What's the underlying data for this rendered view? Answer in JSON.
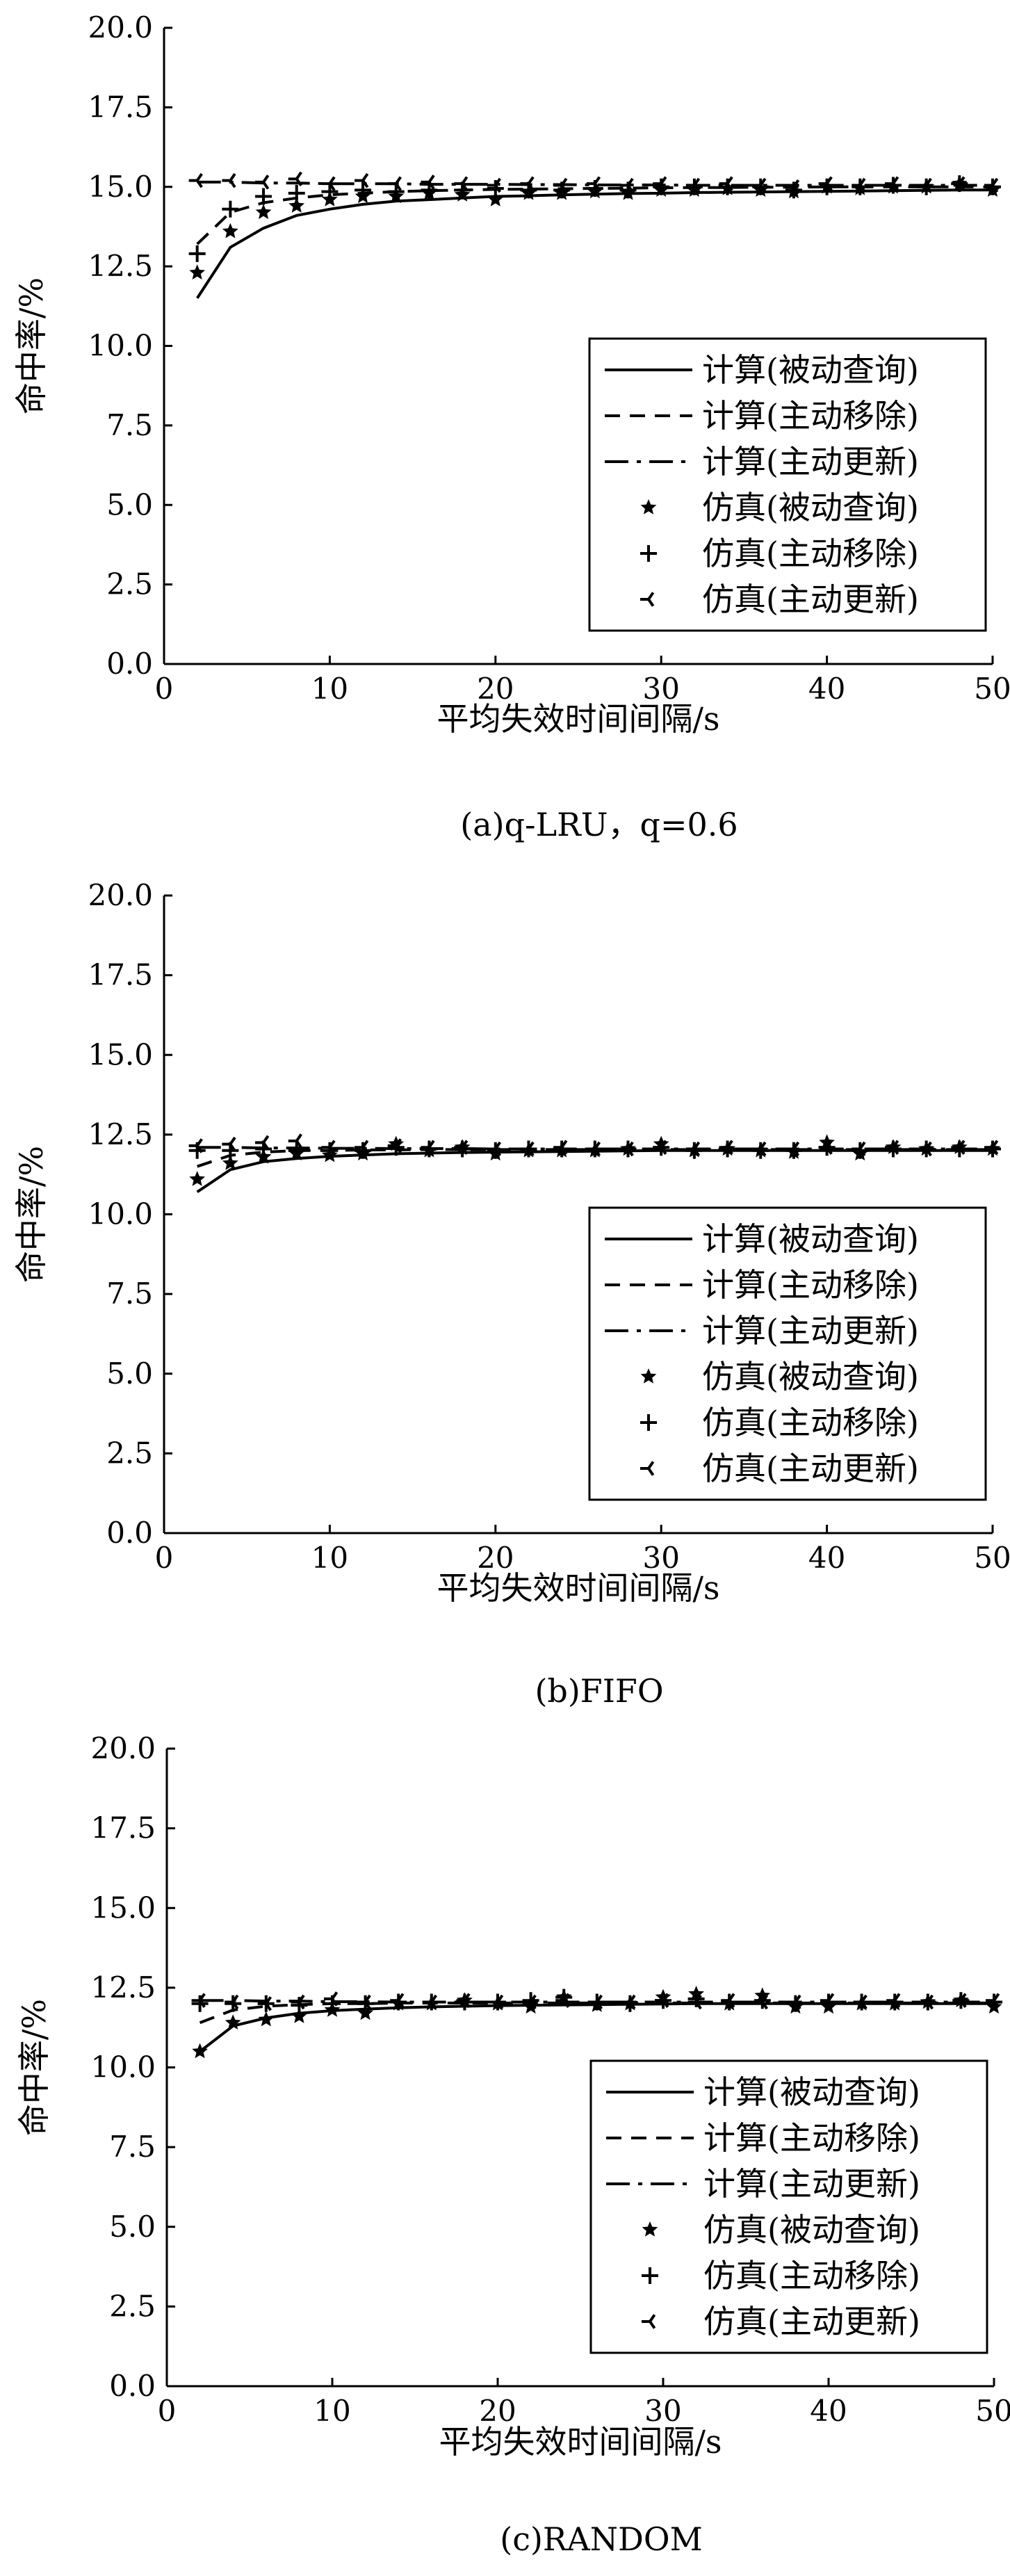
{
  "chart_data": [
    {
      "type": "line",
      "caption": "(a)q-LRU，q=0.6",
      "xlabel": "平均失效时间间隔/s",
      "ylabel": "命中率/%",
      "xlim": [
        0,
        50
      ],
      "ylim": [
        0.0,
        20.0
      ],
      "xticks": [
        "0",
        "10",
        "20",
        "30",
        "40",
        "50"
      ],
      "yticks": [
        "0.0",
        "2.5",
        "5.0",
        "7.5",
        "10.0",
        "12.5",
        "15.0",
        "17.5",
        "20.0"
      ],
      "grid": false,
      "legend_position": "bottom-right",
      "x": [
        2,
        4,
        6,
        8,
        10,
        12,
        14,
        16,
        18,
        20,
        22,
        24,
        26,
        28,
        30,
        32,
        34,
        36,
        38,
        40,
        42,
        44,
        46,
        48,
        50
      ],
      "series": [
        {
          "name": "计算(被动查询)",
          "kind": "line",
          "dash": "solid",
          "values": [
            11.5,
            13.1,
            13.7,
            14.1,
            14.3,
            14.45,
            14.55,
            14.6,
            14.65,
            14.7,
            14.72,
            14.75,
            14.77,
            14.79,
            14.8,
            14.82,
            14.83,
            14.84,
            14.85,
            14.86,
            14.87,
            14.88,
            14.89,
            14.9,
            14.9
          ]
        },
        {
          "name": "计算(主动移除)",
          "kind": "line",
          "dash": "dashed",
          "values": [
            13.2,
            14.2,
            14.5,
            14.65,
            14.75,
            14.8,
            14.85,
            14.88,
            14.9,
            14.92,
            14.93,
            14.94,
            14.95,
            14.96,
            14.97,
            14.98,
            14.98,
            14.99,
            14.99,
            15.0,
            15.0,
            15.0,
            15.0,
            15.0,
            15.0
          ]
        },
        {
          "name": "计算(主动更新)",
          "kind": "line",
          "dash": "dashdot",
          "values": [
            15.15,
            15.15,
            15.12,
            15.12,
            15.1,
            15.1,
            15.1,
            15.08,
            15.08,
            15.08,
            15.07,
            15.07,
            15.06,
            15.06,
            15.06,
            15.05,
            15.05,
            15.05,
            15.05,
            15.05,
            15.05,
            15.05,
            15.05,
            15.05,
            15.05
          ]
        },
        {
          "name": "仿真(被动查询)",
          "kind": "marker",
          "marker": "star",
          "values": [
            12.3,
            13.6,
            14.2,
            14.4,
            14.6,
            14.7,
            14.7,
            14.8,
            14.75,
            14.6,
            14.8,
            14.8,
            14.85,
            14.8,
            14.9,
            14.9,
            14.95,
            14.9,
            14.85,
            15.0,
            14.95,
            15.0,
            15.0,
            15.1,
            14.9
          ]
        },
        {
          "name": "仿真(主动移除)",
          "kind": "marker",
          "marker": "plus",
          "values": [
            12.9,
            14.3,
            14.7,
            14.8,
            14.85,
            14.9,
            14.85,
            14.9,
            14.9,
            14.95,
            14.9,
            14.9,
            14.95,
            14.9,
            15.0,
            15.0,
            15.0,
            15.0,
            14.9,
            15.0,
            15.0,
            15.05,
            15.0,
            15.1,
            15.0
          ]
        },
        {
          "name": "仿真(主动更新)",
          "kind": "marker",
          "marker": "tri",
          "values": [
            15.2,
            15.2,
            15.15,
            15.25,
            15.1,
            15.2,
            15.1,
            15.15,
            15.1,
            15.05,
            15.1,
            15.05,
            15.1,
            15.05,
            15.1,
            15.05,
            15.1,
            15.05,
            15.0,
            15.1,
            15.05,
            15.1,
            15.05,
            15.1,
            15.05
          ]
        }
      ]
    },
    {
      "type": "line",
      "caption": "(b)FIFO",
      "xlabel": "平均失效时间间隔/s",
      "ylabel": "命中率/%",
      "xlim": [
        0,
        50
      ],
      "ylim": [
        0.0,
        20.0
      ],
      "xticks": [
        "0",
        "10",
        "20",
        "30",
        "40",
        "50"
      ],
      "yticks": [
        "0.0",
        "2.5",
        "5.0",
        "7.5",
        "10.0",
        "12.5",
        "15.0",
        "17.5",
        "20.0"
      ],
      "grid": false,
      "legend_position": "bottom-right",
      "x": [
        2,
        4,
        6,
        8,
        10,
        12,
        14,
        16,
        18,
        20,
        22,
        24,
        26,
        28,
        30,
        32,
        34,
        36,
        38,
        40,
        42,
        44,
        46,
        48,
        50
      ],
      "series": [
        {
          "name": "计算(被动查询)",
          "kind": "line",
          "dash": "solid",
          "values": [
            10.7,
            11.4,
            11.65,
            11.75,
            11.82,
            11.86,
            11.9,
            11.92,
            11.94,
            11.95,
            11.96,
            11.97,
            11.98,
            11.99,
            12.0,
            12.0,
            12.0,
            12.0,
            12.0,
            12.0,
            12.0,
            12.0,
            12.0,
            12.0,
            12.0
          ]
        },
        {
          "name": "计算(主动移除)",
          "kind": "line",
          "dash": "dashed",
          "values": [
            11.5,
            11.85,
            11.95,
            12.0,
            12.0,
            12.02,
            12.02,
            12.03,
            12.03,
            12.03,
            12.03,
            12.03,
            12.03,
            12.03,
            12.03,
            12.03,
            12.03,
            12.03,
            12.03,
            12.03,
            12.03,
            12.03,
            12.03,
            12.03,
            12.03
          ]
        },
        {
          "name": "计算(主动更新)",
          "kind": "line",
          "dash": "dashdot",
          "values": [
            12.1,
            12.1,
            12.08,
            12.08,
            12.07,
            12.07,
            12.06,
            12.06,
            12.06,
            12.05,
            12.05,
            12.05,
            12.05,
            12.05,
            12.05,
            12.05,
            12.05,
            12.05,
            12.05,
            12.05,
            12.05,
            12.05,
            12.05,
            12.05,
            12.05
          ]
        },
        {
          "name": "仿真(被动查询)",
          "kind": "marker",
          "marker": "star",
          "values": [
            11.1,
            11.6,
            11.8,
            11.9,
            11.85,
            11.9,
            12.2,
            12.0,
            12.1,
            11.9,
            12.0,
            12.0,
            12.0,
            12.05,
            12.2,
            12.0,
            12.05,
            12.0,
            11.95,
            12.25,
            11.9,
            12.1,
            12.05,
            12.1,
            12.05
          ]
        },
        {
          "name": "仿真(主动移除)",
          "kind": "marker",
          "marker": "plus",
          "values": [
            12.0,
            12.0,
            12.05,
            12.0,
            12.0,
            12.0,
            12.1,
            12.05,
            12.05,
            12.0,
            12.05,
            12.05,
            12.05,
            12.05,
            12.1,
            12.0,
            12.05,
            12.0,
            12.0,
            12.1,
            12.0,
            12.05,
            12.05,
            12.05,
            12.05
          ]
        },
        {
          "name": "仿真(主动更新)",
          "kind": "marker",
          "marker": "tri",
          "values": [
            12.15,
            12.2,
            12.25,
            12.3,
            12.1,
            12.1,
            12.15,
            12.1,
            12.1,
            12.05,
            12.05,
            12.1,
            12.05,
            12.05,
            12.1,
            12.05,
            12.1,
            12.05,
            12.05,
            12.1,
            12.05,
            12.1,
            12.05,
            12.1,
            12.1
          ]
        }
      ]
    },
    {
      "type": "line",
      "caption": "(c)RANDOM",
      "xlabel": "平均失效时间间隔/s",
      "ylabel": "命中率/%",
      "xlim": [
        0,
        50
      ],
      "ylim": [
        0.0,
        20.0
      ],
      "xticks": [
        "0",
        "10",
        "20",
        "30",
        "40",
        "50"
      ],
      "yticks": [
        "0.0",
        "2.5",
        "5.0",
        "7.5",
        "10.0",
        "12.5",
        "15.0",
        "17.5",
        "20.0"
      ],
      "grid": false,
      "legend_position": "bottom-right",
      "x": [
        2,
        4,
        6,
        8,
        10,
        12,
        14,
        16,
        18,
        20,
        22,
        24,
        26,
        28,
        30,
        32,
        34,
        36,
        38,
        40,
        42,
        44,
        46,
        48,
        50
      ],
      "series": [
        {
          "name": "计算(被动查询)",
          "kind": "line",
          "dash": "solid",
          "values": [
            10.5,
            11.3,
            11.55,
            11.7,
            11.78,
            11.83,
            11.87,
            11.9,
            11.92,
            11.94,
            11.95,
            11.96,
            11.97,
            11.98,
            11.99,
            12.0,
            12.0,
            12.0,
            12.0,
            12.0,
            12.0,
            12.0,
            12.0,
            12.0,
            12.0
          ]
        },
        {
          "name": "计算(主动移除)",
          "kind": "line",
          "dash": "dashed",
          "values": [
            11.4,
            11.8,
            11.92,
            11.97,
            12.0,
            12.0,
            12.02,
            12.02,
            12.02,
            12.02,
            12.02,
            12.02,
            12.02,
            12.02,
            12.02,
            12.02,
            12.02,
            12.02,
            12.02,
            12.02,
            12.02,
            12.02,
            12.02,
            12.02,
            12.02
          ]
        },
        {
          "name": "计算(主动更新)",
          "kind": "line",
          "dash": "dashdot",
          "values": [
            12.1,
            12.1,
            12.08,
            12.08,
            12.06,
            12.06,
            12.05,
            12.05,
            12.05,
            12.05,
            12.05,
            12.05,
            12.05,
            12.05,
            12.05,
            12.05,
            12.05,
            12.05,
            12.05,
            12.05,
            12.05,
            12.05,
            12.05,
            12.05,
            12.05
          ]
        },
        {
          "name": "仿真(被动查询)",
          "kind": "marker",
          "marker": "star",
          "values": [
            10.5,
            11.4,
            11.5,
            11.6,
            11.8,
            11.7,
            12.0,
            12.0,
            12.1,
            12.0,
            11.9,
            12.2,
            11.95,
            12.0,
            12.2,
            12.3,
            12.0,
            12.25,
            11.9,
            11.9,
            12.0,
            12.0,
            12.05,
            12.1,
            11.9
          ]
        },
        {
          "name": "仿真(主动移除)",
          "kind": "marker",
          "marker": "plus",
          "values": [
            12.0,
            12.0,
            12.0,
            11.95,
            12.0,
            12.0,
            12.05,
            12.05,
            12.05,
            12.05,
            12.1,
            12.2,
            12.05,
            12.0,
            12.1,
            12.15,
            12.05,
            12.1,
            12.0,
            12.05,
            12.05,
            12.05,
            12.05,
            12.1,
            12.05
          ]
        },
        {
          "name": "仿真(主动更新)",
          "kind": "marker",
          "marker": "tri",
          "values": [
            12.1,
            12.05,
            12.0,
            12.05,
            12.15,
            12.05,
            12.1,
            12.05,
            12.1,
            12.05,
            12.05,
            12.1,
            12.05,
            12.05,
            12.1,
            12.05,
            12.1,
            12.05,
            12.05,
            12.1,
            12.05,
            12.1,
            12.05,
            12.1,
            12.1
          ]
        }
      ]
    }
  ]
}
